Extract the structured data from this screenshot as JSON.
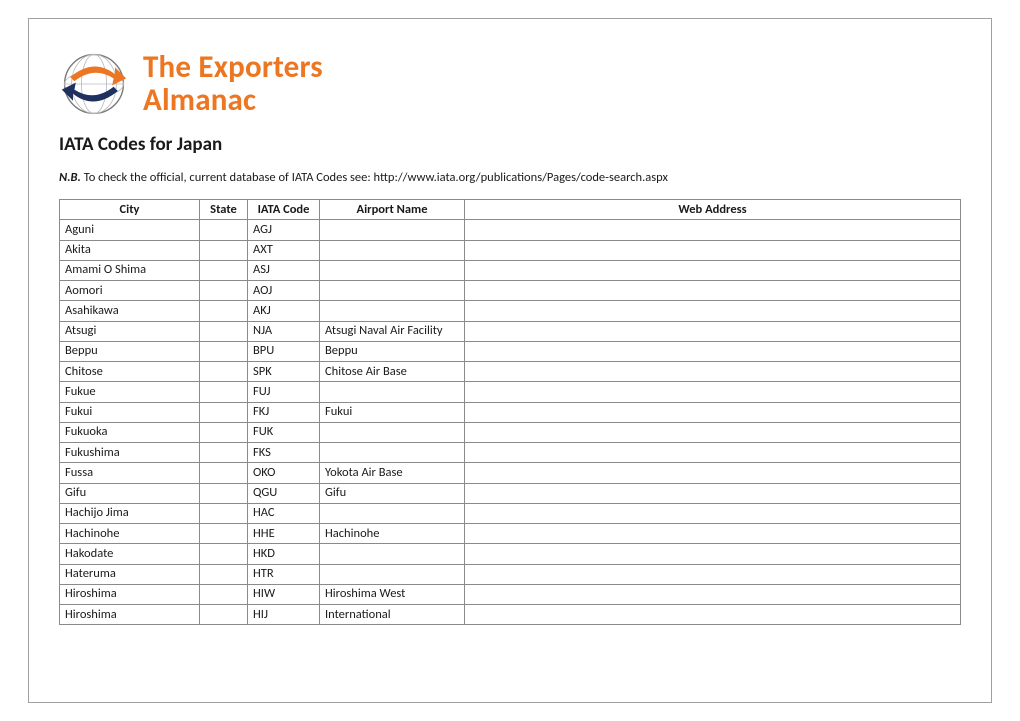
{
  "logo": {
    "line1": "The Exporters",
    "line2": "Almanac"
  },
  "title": "IATA Codes for Japan",
  "note_prefix": "N.B.",
  "note_body": " To check the official, current database of IATA Codes see: http://www.iata.org/publications/Pages/code-search.aspx",
  "table": {
    "columns": [
      "City",
      "State",
      "IATA Code",
      "Airport Name",
      "Web Address"
    ],
    "rows": [
      [
        "Aguni",
        "",
        "AGJ",
        "",
        ""
      ],
      [
        "Akita",
        "",
        "AXT",
        "",
        ""
      ],
      [
        "Amami O Shima",
        "",
        "ASJ",
        "",
        ""
      ],
      [
        "Aomori",
        "",
        "AOJ",
        "",
        ""
      ],
      [
        "Asahikawa",
        "",
        "AKJ",
        "",
        ""
      ],
      [
        "Atsugi",
        "",
        "NJA",
        "Atsugi Naval Air Facility",
        ""
      ],
      [
        "Beppu",
        "",
        "BPU",
        "Beppu",
        ""
      ],
      [
        "Chitose",
        "",
        "SPK",
        "Chitose Air Base",
        ""
      ],
      [
        "Fukue",
        "",
        "FUJ",
        "",
        ""
      ],
      [
        "Fukui",
        "",
        "FKJ",
        "Fukui",
        ""
      ],
      [
        "Fukuoka",
        "",
        "FUK",
        "",
        ""
      ],
      [
        "Fukushima",
        "",
        "FKS",
        "",
        ""
      ],
      [
        "Fussa",
        "",
        "OKO",
        "Yokota Air Base",
        ""
      ],
      [
        "Gifu",
        "",
        "QGU",
        "Gifu",
        ""
      ],
      [
        "Hachijo Jima",
        "",
        "HAC",
        "",
        ""
      ],
      [
        "Hachinohe",
        "",
        "HHE",
        "Hachinohe",
        ""
      ],
      [
        "Hakodate",
        "",
        "HKD",
        "",
        ""
      ],
      [
        "Hateruma",
        "",
        "HTR",
        "",
        ""
      ],
      [
        "Hiroshima",
        "",
        "HIW",
        "Hiroshima West",
        ""
      ],
      [
        "Hiroshima",
        "",
        "HIJ",
        "International",
        ""
      ]
    ]
  }
}
